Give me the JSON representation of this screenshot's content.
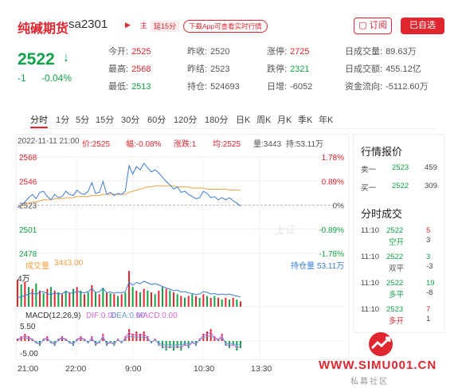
{
  "header": {
    "title": "纯碱期货",
    "code": "sa2301",
    "main_tag": "主",
    "delay_tag": "延15分",
    "download_text": "下载App可查看实时行情",
    "subscribe_label": "订阅",
    "add_label": "已自选"
  },
  "quote": {
    "price": "2522",
    "change": "-1",
    "change_pct": "-0.04%"
  },
  "stats": [
    {
      "label": "今开:",
      "value": "2525",
      "color": "red"
    },
    {
      "label": "昨收:",
      "value": "2520",
      "color": "gray"
    },
    {
      "label": "涨停:",
      "value": "2725",
      "color": "red"
    },
    {
      "label": "日成交量:",
      "value": "89.63万",
      "color": "gray"
    },
    {
      "label": "最高:",
      "value": "2568",
      "color": "red"
    },
    {
      "label": "昨结:",
      "value": "2523",
      "color": "gray"
    },
    {
      "label": "跌停:",
      "value": "2321",
      "color": "green"
    },
    {
      "label": "日成交额:",
      "value": "455.12亿",
      "color": "gray"
    },
    {
      "label": "最低:",
      "value": "2513",
      "color": "green"
    },
    {
      "label": "持仓:",
      "value": "524693",
      "color": "gray"
    },
    {
      "label": "日增:",
      "value": "-6052",
      "color": "gray"
    },
    {
      "label": "资金流向:",
      "value": "-5112.60万",
      "color": "gray"
    }
  ],
  "tabs": [
    "分时",
    "1分",
    "5分",
    "15分",
    "30分",
    "60分",
    "120分",
    "180分",
    "日K",
    "周K",
    "月K",
    "季K",
    "年K"
  ],
  "chart_info": {
    "datetime": "2022-11-11 21:00",
    "price_label": "价:2525",
    "amp_label": "幅:-0.08%",
    "chg_label": "涨跌:1",
    "avg_label": "均:2525",
    "vol_label": "量:3443",
    "oi_label": "持:53.11万",
    "vol_title": "成交量",
    "vol_value": "3443.00",
    "oi_title": "持仓量",
    "oi_value": "53.11万",
    "vol_axis": "4万",
    "macd_title": "MACD(12,26,9)",
    "dif_label": "DIF:0.00",
    "dea_label": "DEA:0.00",
    "macd_label": "MACD:0.00",
    "macd_top": "5.50",
    "macd_bottom": "-5.00",
    "watermark": "上证"
  },
  "chart_data": {
    "type": "line",
    "title": "",
    "x_ticks": [
      "21:00",
      "22:00",
      "9:00",
      "10:30",
      "13:30"
    ],
    "y_ticks_left": [
      "2568",
      "2546",
      "2523",
      "2501",
      "2478"
    ],
    "y_ticks_right": [
      "1.78%",
      "0.89%",
      "0%",
      "-0.89%",
      "-1.78%"
    ],
    "ylim": [
      2478,
      2568
    ],
    "series": [
      {
        "values": [
          2521,
          2523,
          2526,
          2530,
          2533,
          2529,
          2535,
          2536,
          2531,
          2528,
          2533,
          2530,
          2531,
          2536,
          2533,
          2532,
          2537,
          2534,
          2533,
          2536,
          2544,
          2534,
          2535,
          2545,
          2533,
          2535,
          2532,
          2534,
          2533,
          2536,
          2560,
          2552,
          2559,
          2556,
          2562,
          2558,
          2554,
          2556,
          2553,
          2549,
          2545,
          2542,
          2538,
          2540,
          2535,
          2536,
          2533,
          2531,
          2529,
          2530,
          2536,
          2534,
          2530,
          2531,
          2528,
          2530,
          2528,
          2530,
          2527,
          2525,
          2522
        ]
      },
      {
        "values": [
          2521,
          2522,
          2524,
          2525,
          2526,
          2526,
          2527,
          2528,
          2528,
          2528,
          2529,
          2529,
          2529,
          2530,
          2530,
          2530,
          2531,
          2531,
          2531,
          2531,
          2532,
          2532,
          2532,
          2533,
          2533,
          2533,
          2533,
          2533,
          2533,
          2533,
          2535,
          2536,
          2537,
          2538,
          2539,
          2540,
          2540,
          2541,
          2541,
          2541,
          2541,
          2541,
          2541,
          2540,
          2540,
          2540,
          2540,
          2539,
          2539,
          2539,
          2539,
          2538,
          2538,
          2538,
          2538,
          2538,
          2538,
          2537,
          2537,
          2537,
          2537
        ]
      }
    ],
    "volume": [
      30,
      25,
      28,
      22,
      20,
      26,
      18,
      15,
      20,
      22,
      18,
      16,
      14,
      18,
      15,
      20,
      22,
      18,
      14,
      16,
      24,
      16,
      14,
      20,
      16,
      15,
      14,
      12,
      14,
      16,
      40,
      22,
      18,
      16,
      20,
      18,
      16,
      14,
      18,
      22,
      20,
      18,
      16,
      14,
      12,
      10,
      12,
      14,
      12,
      10,
      14,
      12,
      10,
      12,
      10,
      8,
      10,
      8,
      10,
      8,
      6
    ],
    "macd_hist": [
      1,
      2,
      3,
      2,
      1,
      -1,
      -2,
      1,
      2,
      -1,
      -2,
      1,
      2,
      1,
      -1,
      -2,
      1,
      2,
      1,
      -1,
      2,
      -2,
      -1,
      3,
      -2,
      -1,
      -2,
      1,
      -1,
      2,
      5,
      3,
      4,
      3,
      4,
      2,
      -1,
      1,
      -2,
      -3,
      -4,
      -3,
      -4,
      -3,
      -4,
      -2,
      -3,
      -1,
      -2,
      1,
      3,
      4,
      5,
      2,
      1,
      3,
      -2,
      -3,
      -2,
      -4,
      -3
    ]
  },
  "panel": {
    "quote_title": "行情报价",
    "sell_label": "卖一",
    "sell_price": "2523",
    "sell_vol": "459",
    "buy_label": "买一",
    "buy_price": "2522",
    "buy_vol": "309",
    "trades_title": "分时成交",
    "trades": [
      {
        "time": "11:10",
        "price": "2522",
        "price_color": "green",
        "vol": "5",
        "vol_color": "red",
        "type": "空开",
        "type_color": "green",
        "oi": "3"
      },
      {
        "time": "11:10",
        "price": "2522",
        "price_color": "green",
        "vol": "3",
        "vol_color": "green",
        "type": "双平",
        "type_color": "gray",
        "oi": "-3"
      },
      {
        "time": "11:10",
        "price": "2522",
        "price_color": "green",
        "vol": "19",
        "vol_color": "green",
        "type": "多平",
        "type_color": "green",
        "oi": "-8"
      },
      {
        "time": "11:10",
        "price": "2523",
        "price_color": "green",
        "vol": "7",
        "vol_color": "red",
        "type": "多开",
        "type_color": "red",
        "oi": "1"
      }
    ]
  },
  "watermark": {
    "site": "WWW.SIMU001.CN",
    "sub": "私募社区"
  },
  "colors": {
    "red": "#e0262f",
    "green": "#12a34a",
    "price_line": "#3b7bd8",
    "avg_line": "#f0a040",
    "dif": "#d86ad8",
    "dea": "#6aa0e0"
  }
}
